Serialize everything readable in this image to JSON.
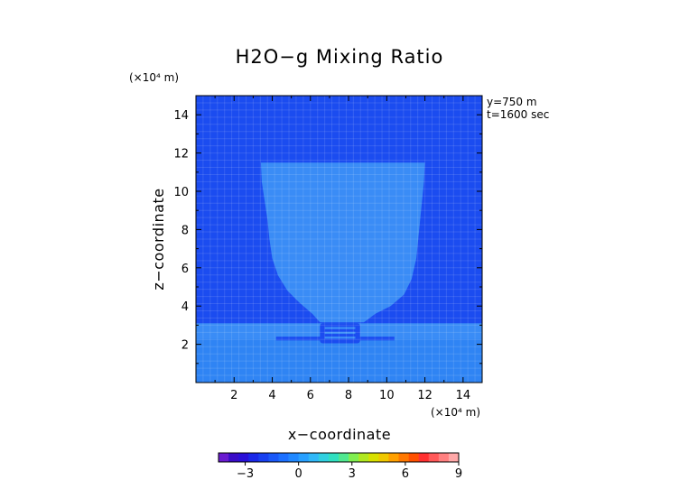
{
  "chart_data": {
    "type": "heatmap",
    "title": "H2O−g Mixing Ratio",
    "xlabel": "x−coordinate",
    "ylabel": "z−coordinate",
    "x_unit": "(×10⁴ m)",
    "y_unit": "(×10⁴ m)",
    "xlim": [
      0,
      15
    ],
    "ylim": [
      0,
      15
    ],
    "x_ticks": [
      2,
      4,
      6,
      8,
      10,
      12,
      14
    ],
    "y_ticks": [
      2,
      4,
      6,
      8,
      10,
      12,
      14
    ],
    "annotations": [
      "y=750 m",
      "t=1600 sec"
    ],
    "colorbar": {
      "ticks": [
        -3,
        0,
        3,
        6,
        9
      ],
      "tick_labels": [
        "−3",
        "0",
        "3",
        "6",
        "9"
      ],
      "range": [
        -4.5,
        9
      ],
      "colors": [
        "#6a1bd0",
        "#3a0cc8",
        "#2a10d8",
        "#1a28e8",
        "#1840f0",
        "#1a58f8",
        "#1c70ff",
        "#2088ff",
        "#28a0ff",
        "#30b8f8",
        "#30d0e0",
        "#30e0c0",
        "#50e890",
        "#80ee50",
        "#b0e820",
        "#d8e000",
        "#f0c800",
        "#ffa000",
        "#ff7800",
        "#ff5000",
        "#ff3030",
        "#ff5858",
        "#ff8080",
        "#ffa8a8"
      ]
    },
    "field": {
      "background_color": "#1b4cf0",
      "plume_color": "#3a8cf6",
      "lower_layer_top": 3.1,
      "lower_layer_color": "#3a8cf6",
      "inner_lower_top": 2.3,
      "inner_lower_color": "#2f84f4",
      "plume_outline": [
        [
          3.4,
          11.5
        ],
        [
          3.45,
          10.5
        ],
        [
          3.6,
          9.5
        ],
        [
          3.75,
          8.5
        ],
        [
          3.85,
          7.5
        ],
        [
          4.0,
          6.5
        ],
        [
          4.3,
          5.6
        ],
        [
          4.8,
          4.8
        ],
        [
          5.4,
          4.2
        ],
        [
          6.1,
          3.6
        ],
        [
          6.5,
          3.15
        ],
        [
          8.8,
          3.15
        ],
        [
          9.4,
          3.6
        ],
        [
          10.2,
          4.0
        ],
        [
          10.9,
          4.6
        ],
        [
          11.3,
          5.4
        ],
        [
          11.55,
          6.5
        ],
        [
          11.65,
          7.5
        ],
        [
          11.75,
          8.5
        ],
        [
          11.85,
          9.5
        ],
        [
          11.95,
          10.5
        ],
        [
          12.0,
          11.5
        ]
      ],
      "dark_band": {
        "x": [
          4.2,
          10.4
        ],
        "z": [
          2.2,
          2.4
        ]
      },
      "cell_core": {
        "x": [
          6.5,
          8.6
        ],
        "z": [
          2.05,
          3.1
        ]
      }
    }
  }
}
